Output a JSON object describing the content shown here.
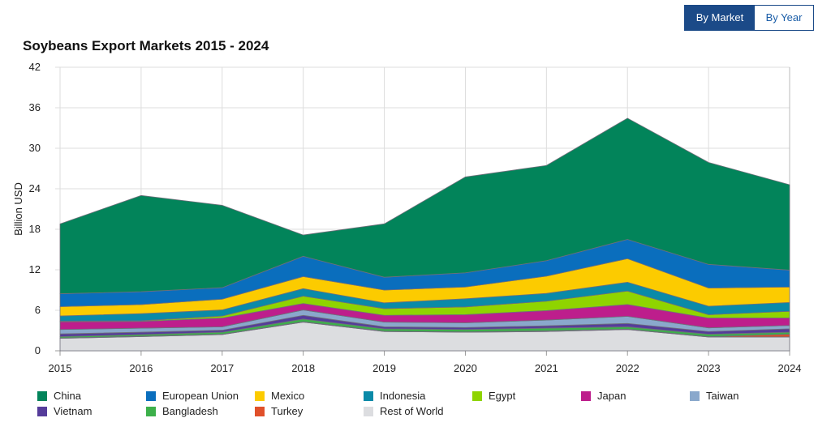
{
  "toggle": {
    "by_market": "By Market",
    "by_year": "By Year"
  },
  "chart_data": {
    "type": "area",
    "stacked": true,
    "title": "Soybeans Export Markets 2015 - 2024",
    "xlabel": "",
    "ylabel": "Billion USD",
    "ylim": [
      0,
      42
    ],
    "yticks": [
      "0",
      "6",
      "12",
      "18",
      "24",
      "30",
      "36",
      "42"
    ],
    "x": [
      "2015",
      "2016",
      "2017",
      "2018",
      "2019",
      "2020",
      "2021",
      "2022",
      "2023",
      "2024"
    ],
    "grid": true,
    "legend_position": "bottom",
    "series": [
      {
        "name": "Rest of World",
        "color": "#dcdde0",
        "values": [
          1.85,
          2.1,
          2.4,
          4.25,
          2.85,
          2.75,
          2.85,
          3.15,
          2.05,
          2.05
        ]
      },
      {
        "name": "Turkey",
        "color": "#e0502a",
        "values": [
          0.05,
          0.05,
          0.05,
          0.05,
          0.05,
          0.05,
          0.1,
          0.05,
          0.05,
          0.4
        ]
      },
      {
        "name": "Bangladesh",
        "color": "#3cb04a",
        "values": [
          0.2,
          0.25,
          0.3,
          0.4,
          0.35,
          0.35,
          0.4,
          0.35,
          0.35,
          0.3
        ]
      },
      {
        "name": "Vietnam",
        "color": "#553c9a",
        "values": [
          0.4,
          0.35,
          0.3,
          0.55,
          0.3,
          0.3,
          0.35,
          0.5,
          0.4,
          0.5
        ]
      },
      {
        "name": "Taiwan",
        "color": "#8aa8cc",
        "values": [
          0.65,
          0.6,
          0.5,
          0.8,
          0.7,
          0.7,
          0.85,
          1.05,
          0.55,
          0.5
        ]
      },
      {
        "name": "Japan",
        "color": "#bd1e8c",
        "values": [
          1.15,
          1.0,
          1.3,
          0.95,
          1.0,
          1.2,
          1.4,
          1.75,
          1.45,
          1.1
        ]
      },
      {
        "name": "Egypt",
        "color": "#8fd400",
        "values": [
          0.1,
          0.1,
          0.3,
          1.1,
          1.0,
          1.15,
          1.4,
          2.0,
          0.5,
          1.0
        ]
      },
      {
        "name": "Indonesia",
        "color": "#0a8aa8",
        "values": [
          0.75,
          1.05,
          0.9,
          1.1,
          0.85,
          1.2,
          1.15,
          1.3,
          1.25,
          1.3
        ]
      },
      {
        "name": "Mexico",
        "color": "#fccb00",
        "values": [
          1.4,
          1.35,
          1.6,
          1.8,
          1.9,
          1.75,
          2.55,
          3.5,
          2.7,
          2.3
        ]
      },
      {
        "name": "European Union",
        "color": "#0a6ebd",
        "values": [
          1.9,
          1.9,
          1.7,
          3.0,
          1.9,
          2.1,
          2.3,
          2.85,
          3.5,
          2.5
        ]
      },
      {
        "name": "China",
        "color": "#02845a",
        "values": [
          10.35,
          14.25,
          12.2,
          3.15,
          7.9,
          14.2,
          14.1,
          17.95,
          15.1,
          12.65
        ]
      }
    ],
    "legend_order": [
      "China",
      "European Union",
      "Mexico",
      "Indonesia",
      "Egypt",
      "Japan",
      "Taiwan",
      "Vietnam",
      "Bangladesh",
      "Turkey",
      "Rest of World"
    ]
  }
}
